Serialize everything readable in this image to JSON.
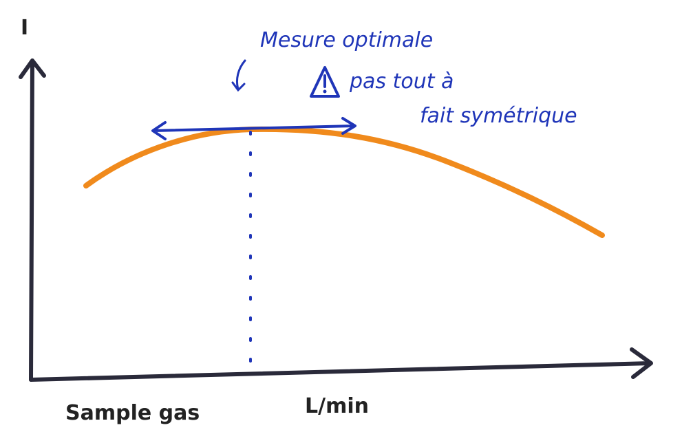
{
  "axes": {
    "y_label": "I",
    "x_label_left": "Sample gas",
    "x_label_right": "L/min"
  },
  "annotations": {
    "optimum": "Mesure optimale",
    "warning_line1": "pas tout à",
    "warning_line2": "fait symétrique"
  }
}
